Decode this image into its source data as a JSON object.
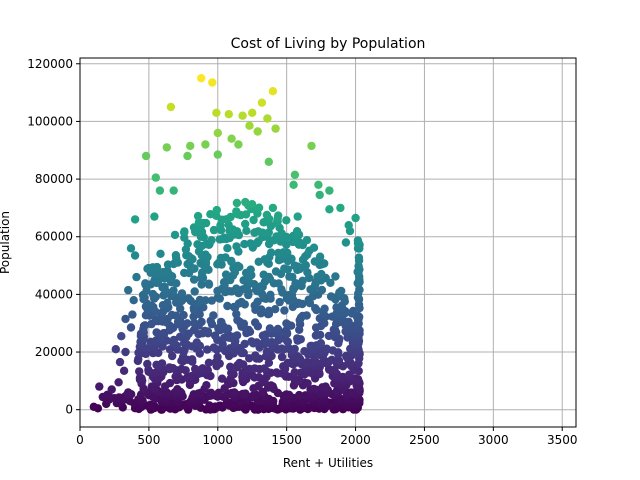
{
  "chart_data": {
    "type": "scatter",
    "title": "Cost of Living by Population",
    "xlabel": "Rent + Utilities",
    "ylabel": "Population",
    "xlim": [
      0,
      3600
    ],
    "ylim": [
      -6000,
      122000
    ],
    "xticks": [
      0,
      500,
      1000,
      1500,
      2000,
      2500,
      3000,
      3500
    ],
    "yticks": [
      0,
      20000,
      40000,
      60000,
      80000,
      100000,
      120000
    ],
    "grid": true,
    "colormap": "viridis",
    "color_by": "y",
    "point_color_range": [
      0,
      115000
    ],
    "approx_point_count": 1100,
    "points_generation": "approximate reconstruction of dense cloud spanning x 100-2030, y 0-115000",
    "outlier_points": [
      [
        880,
        115000
      ],
      [
        960,
        113500
      ],
      [
        1400,
        110500
      ],
      [
        660,
        105000
      ],
      [
        1320,
        106500
      ],
      [
        990,
        103000
      ],
      [
        1080,
        102500
      ],
      [
        1180,
        102000
      ],
      [
        1250,
        103000
      ],
      [
        1360,
        101000
      ],
      [
        1230,
        98500
      ],
      [
        1420,
        97500
      ],
      [
        1000,
        96000
      ],
      [
        1290,
        96500
      ],
      [
        1100,
        94000
      ],
      [
        630,
        91000
      ],
      [
        800,
        91500
      ],
      [
        1680,
        91500
      ],
      [
        910,
        92000
      ],
      [
        1150,
        92000
      ],
      [
        480,
        88000
      ],
      [
        780,
        88000
      ],
      [
        1000,
        88500
      ],
      [
        1370,
        86000
      ],
      [
        1560,
        81500
      ],
      [
        550,
        80500
      ],
      [
        1730,
        78000
      ],
      [
        1810,
        76000
      ],
      [
        580,
        76000
      ],
      [
        680,
        76000
      ],
      [
        1550,
        78000
      ],
      [
        1740,
        74500
      ],
      [
        1890,
        70000
      ],
      [
        1810,
        69500
      ],
      [
        1580,
        67000
      ],
      [
        400,
        66000
      ],
      [
        540,
        67000
      ],
      [
        1200,
        72000
      ],
      [
        1400,
        70000
      ],
      [
        1960,
        62000
      ],
      [
        2000,
        66500
      ],
      [
        1950,
        64000
      ],
      [
        1930,
        58000
      ],
      [
        370,
        56000
      ],
      [
        400,
        53500
      ],
      [
        410,
        46000
      ],
      [
        350,
        41500
      ],
      [
        390,
        38000
      ],
      [
        380,
        33000
      ],
      [
        330,
        31500
      ],
      [
        370,
        28500
      ],
      [
        300,
        25500
      ],
      [
        260,
        21000
      ],
      [
        330,
        20000
      ],
      [
        290,
        16500
      ],
      [
        320,
        13500
      ],
      [
        280,
        9500
      ],
      [
        140,
        8000
      ],
      [
        230,
        7000
      ],
      [
        210,
        3500
      ],
      [
        190,
        2000
      ],
      [
        100,
        1000
      ],
      [
        130,
        500
      ],
      [
        250,
        4000
      ],
      [
        350,
        6000
      ]
    ]
  }
}
